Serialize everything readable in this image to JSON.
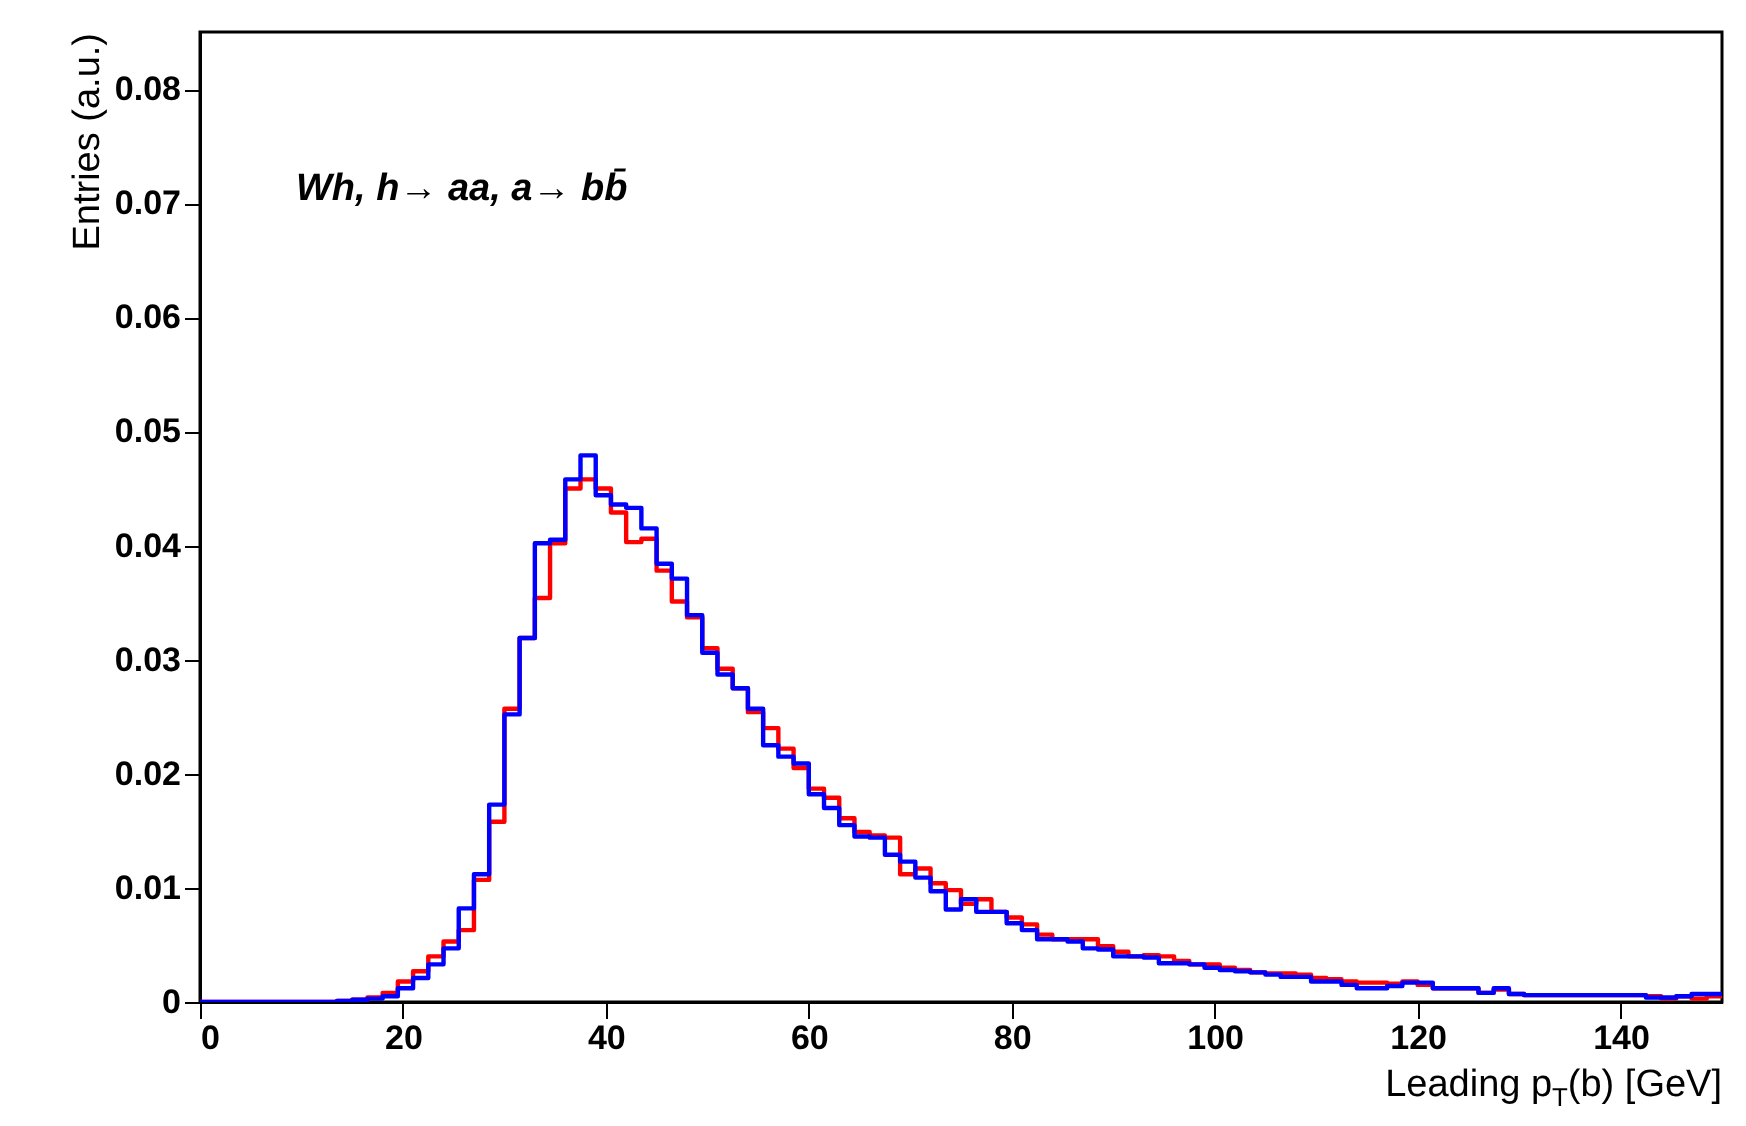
{
  "chart_data": {
    "type": "histogram",
    "xlabel": "Leading p$_{T}$(b) [GeV]",
    "ylabel": "Entries (a.u.)",
    "annotations": [
      "Wh, h→ aa, a→ bb̄"
    ],
    "bins": [
      0,
      1.5,
      3,
      4.5,
      6,
      7.5,
      9,
      10.5,
      12,
      13.5,
      15,
      16.5,
      18,
      19.5,
      21,
      22.5,
      24,
      25.5,
      27,
      28.5,
      30,
      31.5,
      33,
      34.5,
      36,
      37.5,
      39,
      40.5,
      42,
      43.5,
      45,
      46.5,
      48,
      49.5,
      51,
      52.5,
      54,
      55.5,
      57,
      58.5,
      60,
      61.5,
      63,
      64.5,
      66,
      67.5,
      69,
      70.5,
      72,
      73.5,
      75,
      76.5,
      78,
      79.5,
      81,
      82.5,
      84,
      85.5,
      87,
      88.5,
      90,
      91.5,
      93,
      94.5,
      96,
      97.5,
      99,
      100.5,
      102,
      103.5,
      105,
      106.5,
      108,
      109.5,
      111,
      112.5,
      114,
      115.5,
      117,
      118.5,
      120,
      121.5,
      123,
      124.5,
      126,
      127.5,
      129,
      130.5,
      132,
      133.5,
      135,
      136.5,
      138,
      139.5,
      141,
      142.5,
      144,
      145.5,
      147,
      148.5,
      150
    ],
    "series": [
      {
        "color": "#ff0000",
        "values": [
          0,
          0,
          0,
          0,
          0,
          0,
          0,
          0,
          0,
          0.0001,
          0.0002,
          0.0004,
          0.0008,
          0.0018,
          0.0027,
          0.004,
          0.0053,
          0.0063,
          0.0107,
          0.0158,
          0.0257,
          0.0319,
          0.0354,
          0.0402,
          0.045,
          0.0458,
          0.045,
          0.0429,
          0.0403,
          0.0406,
          0.0378,
          0.0351,
          0.0337,
          0.031,
          0.0292,
          0.0275,
          0.0254,
          0.024,
          0.0222,
          0.0205,
          0.0187,
          0.0179,
          0.0161,
          0.0149,
          0.0146,
          0.0144,
          0.0112,
          0.0117,
          0.0104,
          0.0098,
          0.0086,
          0.009,
          0.0079,
          0.0074,
          0.0068,
          0.0059,
          0.0055,
          0.0055,
          0.0055,
          0.0049,
          0.0044,
          0.004,
          0.0041,
          0.004,
          0.0036,
          0.0033,
          0.0033,
          0.003,
          0.0028,
          0.0026,
          0.0025,
          0.0025,
          0.0024,
          0.0021,
          0.002,
          0.0018,
          0.0017,
          0.0017,
          0.0016,
          0.0018,
          0.0015,
          0.0012,
          0.0012,
          0.0012,
          0.0008,
          0.0011,
          0.0007,
          0.0006,
          0.0006,
          0.0006,
          0.0006,
          0.0006,
          0.0006,
          0.0006,
          0.0006,
          0.0005,
          0.0003,
          0.0005,
          0.0003,
          0.0005
        ]
      },
      {
        "color": "#0000ff",
        "values": [
          0,
          0,
          0,
          0,
          0,
          0,
          0,
          0,
          0,
          0.0001,
          0.0002,
          0.0003,
          0.0005,
          0.0012,
          0.0021,
          0.0033,
          0.0047,
          0.0082,
          0.0112,
          0.0173,
          0.0252,
          0.0319,
          0.0402,
          0.0405,
          0.0458,
          0.0479,
          0.0444,
          0.0436,
          0.0433,
          0.0415,
          0.0384,
          0.0371,
          0.0339,
          0.0306,
          0.0287,
          0.0275,
          0.0257,
          0.0225,
          0.0215,
          0.0209,
          0.0182,
          0.017,
          0.0155,
          0.0145,
          0.0144,
          0.0129,
          0.0123,
          0.0109,
          0.0097,
          0.0081,
          0.009,
          0.0079,
          0.0079,
          0.0069,
          0.0063,
          0.0055,
          0.0055,
          0.0053,
          0.0047,
          0.0046,
          0.004,
          0.004,
          0.0039,
          0.0034,
          0.0034,
          0.0033,
          0.003,
          0.0028,
          0.0027,
          0.0026,
          0.0024,
          0.0022,
          0.0022,
          0.0018,
          0.0018,
          0.0015,
          0.0012,
          0.0012,
          0.0014,
          0.0017,
          0.0017,
          0.0012,
          0.0012,
          0.0012,
          0.0008,
          0.0012,
          0.0007,
          0.0006,
          0.0006,
          0.0006,
          0.0006,
          0.0006,
          0.0006,
          0.0006,
          0.0006,
          0.0004,
          0.0004,
          0.0005,
          0.0007,
          0.0007
        ]
      }
    ],
    "xlim": [
      0,
      150
    ],
    "ylim": [
      0,
      0.085
    ],
    "xticks": [
      0,
      20,
      40,
      60,
      80,
      100,
      120,
      140
    ],
    "yticks": [
      0,
      0.01,
      0.02,
      0.03,
      0.04,
      0.05,
      0.06,
      0.07,
      0.08
    ],
    "grid": false
  }
}
